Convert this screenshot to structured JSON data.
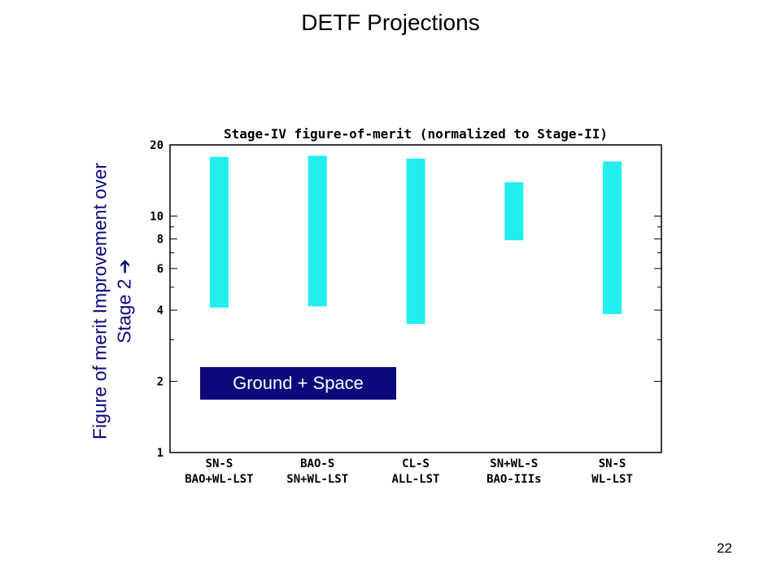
{
  "slide": {
    "title": "DETF Projections",
    "page_number": "22",
    "y_title_line1": "Figure of merit Improvement over",
    "y_title_line2": "Stage 2",
    "y_title_arrow": "➔",
    "legend_label": "Ground + Space"
  },
  "colors": {
    "bar": "#22eeee",
    "label_navy": "#0a0a7c",
    "frame": "#000000"
  },
  "chart_data": {
    "type": "bar",
    "subtype": "floating-range",
    "title": "Stage-IV figure-of-merit (normalized to Stage-II)",
    "yscale": "log",
    "ylim": [
      1,
      20
    ],
    "yticks": [
      1,
      2,
      4,
      6,
      8,
      10,
      20
    ],
    "categories": [
      [
        "SN-S",
        "BAO+WL-LST"
      ],
      [
        "BAO-S",
        "SN+WL-LST"
      ],
      [
        "CL-S",
        "ALL-LST"
      ],
      [
        "SN+WL-S",
        "BAO-IIIs"
      ],
      [
        "SN-S",
        "WL-LST"
      ]
    ],
    "series": [
      {
        "low": [
          4.1,
          4.15,
          3.5,
          7.9,
          3.85
        ],
        "high": [
          17.8,
          18.0,
          17.5,
          13.9,
          17.0
        ]
      }
    ],
    "grid": false
  }
}
